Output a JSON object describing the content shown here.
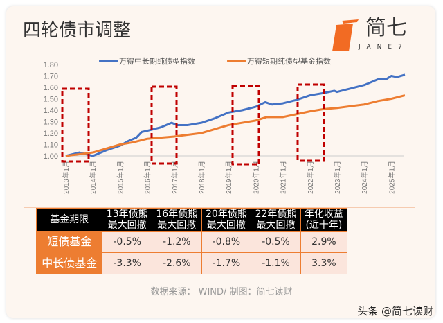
{
  "title": "四轮债市调整",
  "logo": {
    "text": "简七",
    "subtext": "JANE7"
  },
  "chart_data": {
    "type": "line",
    "ylim": [
      1.0,
      1.8
    ],
    "yticks": [
      "1.00",
      "1.10",
      "1.20",
      "1.30",
      "1.40",
      "1.50",
      "1.60",
      "1.70",
      "1.80"
    ],
    "xticks": [
      "2013年1月",
      "2014年1月",
      "2015年1月",
      "2016年1月",
      "2017年1月",
      "2018年1月",
      "2019年1月",
      "2020年1月",
      "2021年1月",
      "2022年1月",
      "2023年1月",
      "2024年1月",
      "2025年1月"
    ],
    "legend_position": "top",
    "series": [
      {
        "name": "万得中长期纯债型指数",
        "color": "#4472c4",
        "x": [
          2013.0,
          2013.5,
          2014.0,
          2014.5,
          2015.0,
          2015.3,
          2015.6,
          2015.8,
          2016.0,
          2016.5,
          2016.9,
          2017.1,
          2017.5,
          2018.0,
          2018.5,
          2019.0,
          2019.5,
          2020.0,
          2020.35,
          2020.6,
          2021.0,
          2021.5,
          2022.0,
          2022.5,
          2022.9,
          2023.0,
          2023.5,
          2024.0,
          2024.5,
          2024.8,
          2025.0,
          2025.2,
          2025.5
        ],
        "y": [
          1.0,
          1.03,
          1.0,
          1.05,
          1.09,
          1.13,
          1.16,
          1.21,
          1.22,
          1.25,
          1.29,
          1.27,
          1.27,
          1.29,
          1.33,
          1.38,
          1.4,
          1.43,
          1.47,
          1.45,
          1.46,
          1.49,
          1.53,
          1.55,
          1.57,
          1.56,
          1.59,
          1.62,
          1.67,
          1.67,
          1.7,
          1.69,
          1.71
        ]
      },
      {
        "name": "万得短期纯债型基金指数",
        "color": "#ed7d31",
        "x": [
          2013.0,
          2014.0,
          2015.0,
          2015.5,
          2016.0,
          2016.5,
          2017.0,
          2018.0,
          2019.0,
          2020.0,
          2020.4,
          2021.0,
          2022.0,
          2022.5,
          2023.0,
          2024.0,
          2024.5,
          2025.0,
          2025.5
        ],
        "y": [
          1.0,
          1.03,
          1.1,
          1.12,
          1.15,
          1.16,
          1.17,
          1.2,
          1.27,
          1.31,
          1.34,
          1.34,
          1.39,
          1.41,
          1.42,
          1.45,
          1.48,
          1.5,
          1.53
        ]
      }
    ]
  },
  "table": {
    "headers": [
      [
        "基金期限",
        ""
      ],
      [
        "13年债熊",
        "最大回撤"
      ],
      [
        "16年债熊",
        "最大回撤"
      ],
      [
        "20年债熊",
        "最大回撤"
      ],
      [
        "22年债熊",
        "最大回撤"
      ],
      [
        "年化收益",
        "(近十年)"
      ]
    ],
    "rows": [
      {
        "label": "短债基金",
        "values": [
          "-0.5%",
          "-1.2%",
          "-0.8%",
          "-0.5%",
          "2.9%"
        ]
      },
      {
        "label": "中长债基金",
        "values": [
          "-3.3%",
          "-2.6%",
          "-1.7%",
          "-1.1%",
          "3.3%"
        ]
      }
    ]
  },
  "source": "数据来源： WIND/ 制图：简七读财",
  "watermark": "头条 @简七读财"
}
